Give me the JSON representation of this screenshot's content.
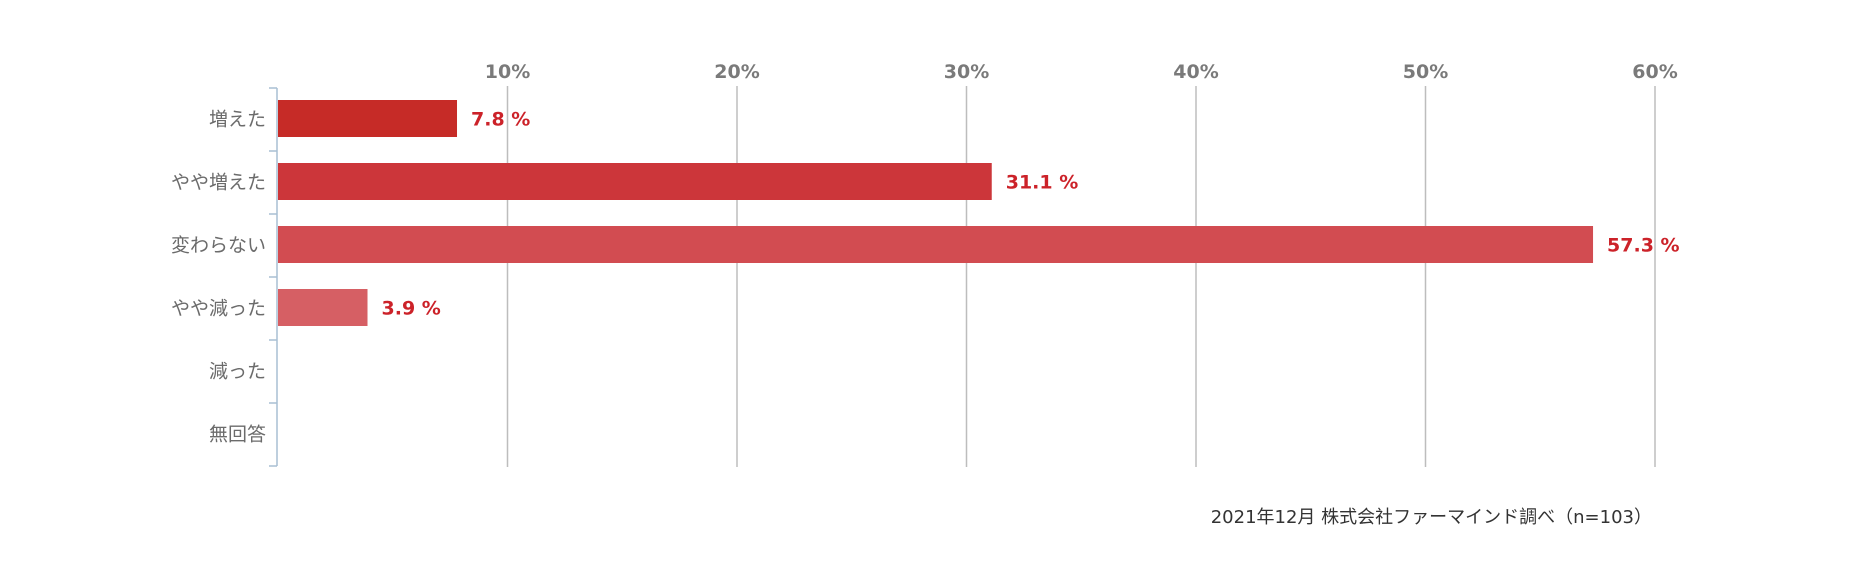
{
  "chart_data": {
    "type": "bar",
    "orientation": "horizontal",
    "categories": [
      "増えた",
      "やや増えた",
      "変わらない",
      "やや減った",
      "減った",
      "無回答"
    ],
    "values": [
      7.8,
      31.1,
      57.3,
      3.9,
      null,
      null
    ],
    "value_labels": [
      "7.8 %",
      "31.1 %",
      "57.3 %",
      "3.9 %",
      "",
      ""
    ],
    "bar_colors": [
      "#c62b27",
      "#cc363a",
      "#d24c51",
      "#d65f64",
      "#d65f64",
      "#d65f64"
    ],
    "value_label_color": "#cc2229",
    "x_ticks": [
      10,
      20,
      30,
      40,
      50,
      60
    ],
    "x_tick_labels": [
      "10%",
      "20%",
      "30%",
      "40%",
      "50%",
      "60%"
    ],
    "xlim": [
      0,
      60
    ],
    "grid": true,
    "gridline_color": "#bdbdbd",
    "axis_color": "#a9bfd3",
    "source_note": "2021年12月 株式会社ファーマインド調べ（n=103）"
  }
}
